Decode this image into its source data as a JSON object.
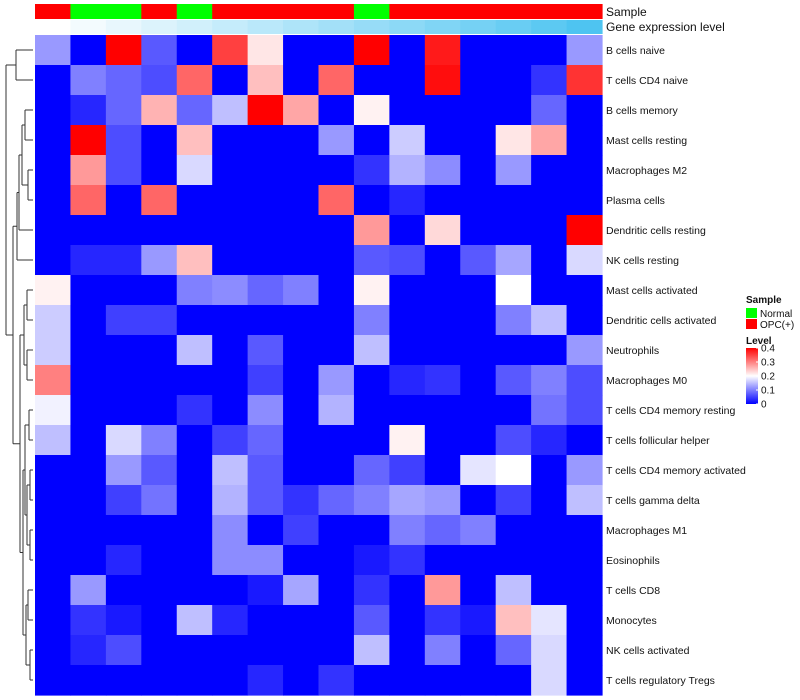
{
  "chart_data": {
    "type": "heatmap",
    "annotation_labels": [
      "Sample",
      "Gene expression level"
    ],
    "sample_groups": [
      "OPC",
      "Normal",
      "Normal",
      "OPC",
      "Normal",
      "OPC",
      "OPC",
      "OPC",
      "OPC",
      "Normal",
      "OPC",
      "OPC",
      "OPC",
      "OPC",
      "OPC",
      "OPC"
    ],
    "expression_levels": [
      0.0,
      0.06,
      0.12,
      0.18,
      0.24,
      0.3,
      0.36,
      0.42,
      0.48,
      0.54,
      0.6,
      0.66,
      0.72,
      0.78,
      0.85,
      0.92
    ],
    "rows": [
      "B cells naive",
      "T cells CD4 naive",
      "B cells memory",
      "Mast cells resting",
      "Macrophages M2",
      "Plasma cells",
      "Dendritic cells resting",
      "NK cells resting",
      "Mast cells activated",
      "Dendritic cells activated",
      "Neutrophils",
      "Macrophages M0",
      "T cells CD4 memory resting",
      "T cells follicular helper",
      "T cells CD4 memory activated",
      "T cells gamma delta",
      "Macrophages M1",
      "Eosinophils",
      "T cells CD8",
      "Monocytes",
      "NK cells activated",
      "T cells regulatory  Tregs"
    ],
    "values": [
      [
        0.12,
        0.0,
        0.4,
        0.07,
        0.0,
        0.35,
        0.22,
        0.0,
        0.0,
        0.4,
        0.0,
        0.38,
        0.0,
        0.0,
        0.0,
        0.12
      ],
      [
        0.0,
        0.1,
        0.08,
        0.06,
        0.32,
        0.0,
        0.25,
        0.0,
        0.32,
        0.0,
        0.0,
        0.39,
        0.0,
        0.0,
        0.04,
        0.36
      ],
      [
        0.0,
        0.03,
        0.08,
        0.26,
        0.08,
        0.15,
        0.4,
        0.27,
        0.0,
        0.21,
        0.0,
        0.0,
        0.0,
        0.0,
        0.08,
        0.0
      ],
      [
        0.0,
        0.4,
        0.06,
        0.0,
        0.25,
        0.0,
        0.0,
        0.0,
        0.12,
        0.0,
        0.16,
        0.0,
        0.0,
        0.22,
        0.27,
        0.0
      ],
      [
        0.0,
        0.28,
        0.06,
        0.0,
        0.17,
        0.0,
        0.0,
        0.0,
        0.0,
        0.04,
        0.14,
        0.11,
        0.0,
        0.12,
        0.0,
        0.0
      ],
      [
        0.0,
        0.32,
        0.0,
        0.32,
        0.0,
        0.0,
        0.0,
        0.0,
        0.32,
        0.0,
        0.03,
        0.0,
        0.0,
        0.0,
        0.0,
        0.0
      ],
      [
        0.0,
        0.0,
        0.0,
        0.0,
        0.0,
        0.0,
        0.0,
        0.0,
        0.0,
        0.28,
        0.0,
        0.23,
        0.0,
        0.0,
        0.0,
        0.4
      ],
      [
        0.0,
        0.03,
        0.03,
        0.12,
        0.25,
        0.0,
        0.0,
        0.0,
        0.0,
        0.07,
        0.06,
        0.0,
        0.07,
        0.13,
        0.0,
        0.17
      ],
      [
        0.21,
        0.0,
        0.0,
        0.0,
        0.1,
        0.11,
        0.08,
        0.1,
        0.0,
        0.21,
        0.0,
        0.0,
        0.0,
        0.2,
        0.0,
        0.0
      ],
      [
        0.16,
        0.0,
        0.05,
        0.05,
        0.0,
        0.0,
        0.0,
        0.0,
        0.0,
        0.1,
        0.0,
        0.0,
        0.0,
        0.1,
        0.15,
        0.0
      ],
      [
        0.16,
        0.0,
        0.0,
        0.0,
        0.15,
        0.0,
        0.07,
        0.0,
        0.0,
        0.15,
        0.0,
        0.0,
        0.0,
        0.0,
        0.0,
        0.12
      ],
      [
        0.3,
        0.0,
        0.0,
        0.0,
        0.0,
        0.0,
        0.05,
        0.0,
        0.12,
        0.0,
        0.03,
        0.04,
        0.0,
        0.07,
        0.1,
        0.06
      ],
      [
        0.19,
        0.0,
        0.0,
        0.0,
        0.04,
        0.0,
        0.11,
        0.0,
        0.14,
        0.0,
        0.0,
        0.0,
        0.0,
        0.0,
        0.09,
        0.06
      ],
      [
        0.15,
        0.0,
        0.17,
        0.1,
        0.0,
        0.05,
        0.08,
        0.0,
        0.0,
        0.0,
        0.21,
        0.0,
        0.0,
        0.06,
        0.03,
        0.0
      ],
      [
        0.0,
        0.0,
        0.12,
        0.07,
        0.0,
        0.15,
        0.07,
        0.0,
        0.0,
        0.08,
        0.05,
        0.0,
        0.18,
        0.2,
        0.0,
        0.12
      ],
      [
        0.0,
        0.0,
        0.05,
        0.09,
        0.0,
        0.14,
        0.07,
        0.04,
        0.08,
        0.1,
        0.13,
        0.12,
        0.0,
        0.05,
        0.0,
        0.15
      ],
      [
        0.0,
        0.0,
        0.0,
        0.0,
        0.0,
        0.11,
        0.0,
        0.05,
        0.0,
        0.0,
        0.1,
        0.08,
        0.1,
        0.0,
        0.0,
        0.0
      ],
      [
        0.0,
        0.0,
        0.03,
        0.0,
        0.0,
        0.11,
        0.11,
        0.0,
        0.0,
        0.02,
        0.04,
        0.0,
        0.0,
        0.0,
        0.0,
        0.0
      ],
      [
        0.0,
        0.12,
        0.0,
        0.0,
        0.0,
        0.0,
        0.02,
        0.13,
        0.0,
        0.04,
        0.0,
        0.28,
        0.0,
        0.15,
        0.0,
        0.0
      ],
      [
        0.0,
        0.04,
        0.02,
        0.0,
        0.15,
        0.03,
        0.0,
        0.0,
        0.0,
        0.07,
        0.0,
        0.04,
        0.02,
        0.25,
        0.18,
        0.0
      ],
      [
        0.0,
        0.03,
        0.06,
        0.0,
        0.0,
        0.0,
        0.0,
        0.0,
        0.0,
        0.15,
        0.0,
        0.1,
        0.0,
        0.08,
        0.17,
        0.0
      ],
      [
        0.0,
        0.0,
        0.0,
        0.0,
        0.0,
        0.0,
        0.03,
        0.0,
        0.04,
        0.0,
        0.0,
        0.0,
        0.0,
        0.0,
        0.17,
        0.0
      ]
    ],
    "color_scale": {
      "min": 0,
      "max": 0.4,
      "colors": [
        "#0000ff",
        "#ffffff",
        "#ff0000"
      ]
    },
    "legend": {
      "sample_title": "Sample",
      "sample_entries": [
        {
          "label": "Normal",
          "color": "#00ff00"
        },
        {
          "label": "OPC(+)",
          "color": "#ff0000"
        }
      ],
      "level_title": "Level",
      "level_ticks": [
        {
          "label": "0.4",
          "value": 0.4
        },
        {
          "label": "0.3",
          "value": 0.3
        },
        {
          "label": "0.2",
          "value": 0.2
        },
        {
          "label": "0.1",
          "value": 0.1
        },
        {
          "label": "0",
          "value": 0.0
        }
      ]
    },
    "group_colors": {
      "OPC": "#ff0000",
      "Normal": "#00ff00"
    },
    "expression_colors": {
      "low": "#ffffff",
      "high": "#3fbff0"
    }
  }
}
